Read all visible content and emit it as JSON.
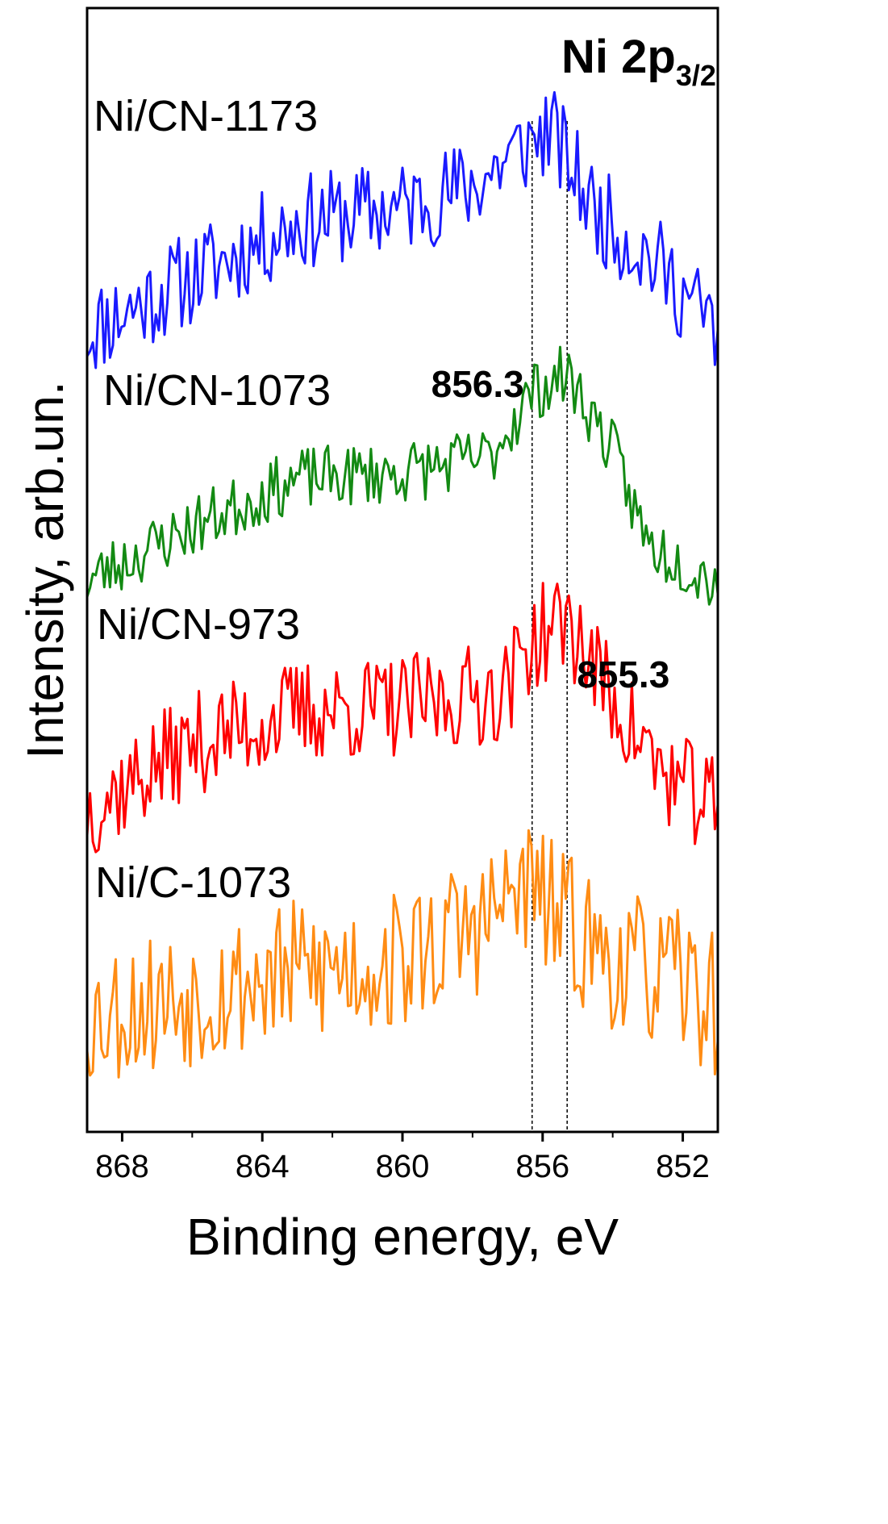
{
  "chart_data": {
    "type": "line",
    "title": "Ni 2p",
    "title_subscript": "3/2",
    "xlabel": "Binding energy, eV",
    "ylabel": "Intensity, arb.un.",
    "xlim": [
      869,
      851
    ],
    "x_reversed": true,
    "xticks": [
      868,
      864,
      860,
      856,
      852
    ],
    "y_tick_labels": false,
    "reference_lines": [
      {
        "x": 856.3,
        "label": "856.3",
        "style": "dashed"
      },
      {
        "x": 855.3,
        "label": "855.3",
        "style": "dashed"
      }
    ],
    "series": [
      {
        "name": "Ni/CN-1173",
        "color": "#1a1aff",
        "offset": 3.3,
        "profile": [
          [
            869,
            0.05
          ],
          [
            866,
            0.3
          ],
          [
            863,
            0.55
          ],
          [
            860,
            0.62
          ],
          [
            858,
            0.72
          ],
          [
            856.5,
            0.9
          ],
          [
            855.8,
            0.98
          ],
          [
            854.5,
            0.6
          ],
          [
            853,
            0.4
          ],
          [
            851,
            0.05
          ]
        ],
        "noise": 0.28,
        "seed": 11
      },
      {
        "name": "Ni/CN-1073",
        "color": "#138a13",
        "offset": 2.15,
        "profile": [
          [
            869,
            0.05
          ],
          [
            866,
            0.3
          ],
          [
            863,
            0.52
          ],
          [
            860,
            0.55
          ],
          [
            857.5,
            0.62
          ],
          [
            856.3,
            0.92
          ],
          [
            855.3,
            1.0
          ],
          [
            854,
            0.65
          ],
          [
            853,
            0.22
          ],
          [
            851,
            0.05
          ]
        ],
        "noise": 0.18,
        "seed": 23
      },
      {
        "name": "Ni/CN-973",
        "color": "#ff0000",
        "offset": 1.1,
        "profile": [
          [
            869,
            0.05
          ],
          [
            866,
            0.35
          ],
          [
            863,
            0.5
          ],
          [
            860,
            0.52
          ],
          [
            857,
            0.6
          ],
          [
            856.5,
            0.8
          ],
          [
            855.3,
            0.92
          ],
          [
            854,
            0.55
          ],
          [
            852.5,
            0.2
          ],
          [
            851,
            0.05
          ]
        ],
        "noise": 0.3,
        "seed": 37
      },
      {
        "name": "Ni/C-1073",
        "color": "#ff8c14",
        "offset": 0.0,
        "profile": [
          [
            869,
            0.2
          ],
          [
            866,
            0.3
          ],
          [
            863,
            0.4
          ],
          [
            860,
            0.45
          ],
          [
            857.5,
            0.65
          ],
          [
            856.5,
            0.8
          ],
          [
            855.3,
            0.62
          ],
          [
            854,
            0.45
          ],
          [
            852,
            0.35
          ],
          [
            851,
            0.25
          ]
        ],
        "noise": 0.42,
        "seed": 53
      }
    ]
  }
}
